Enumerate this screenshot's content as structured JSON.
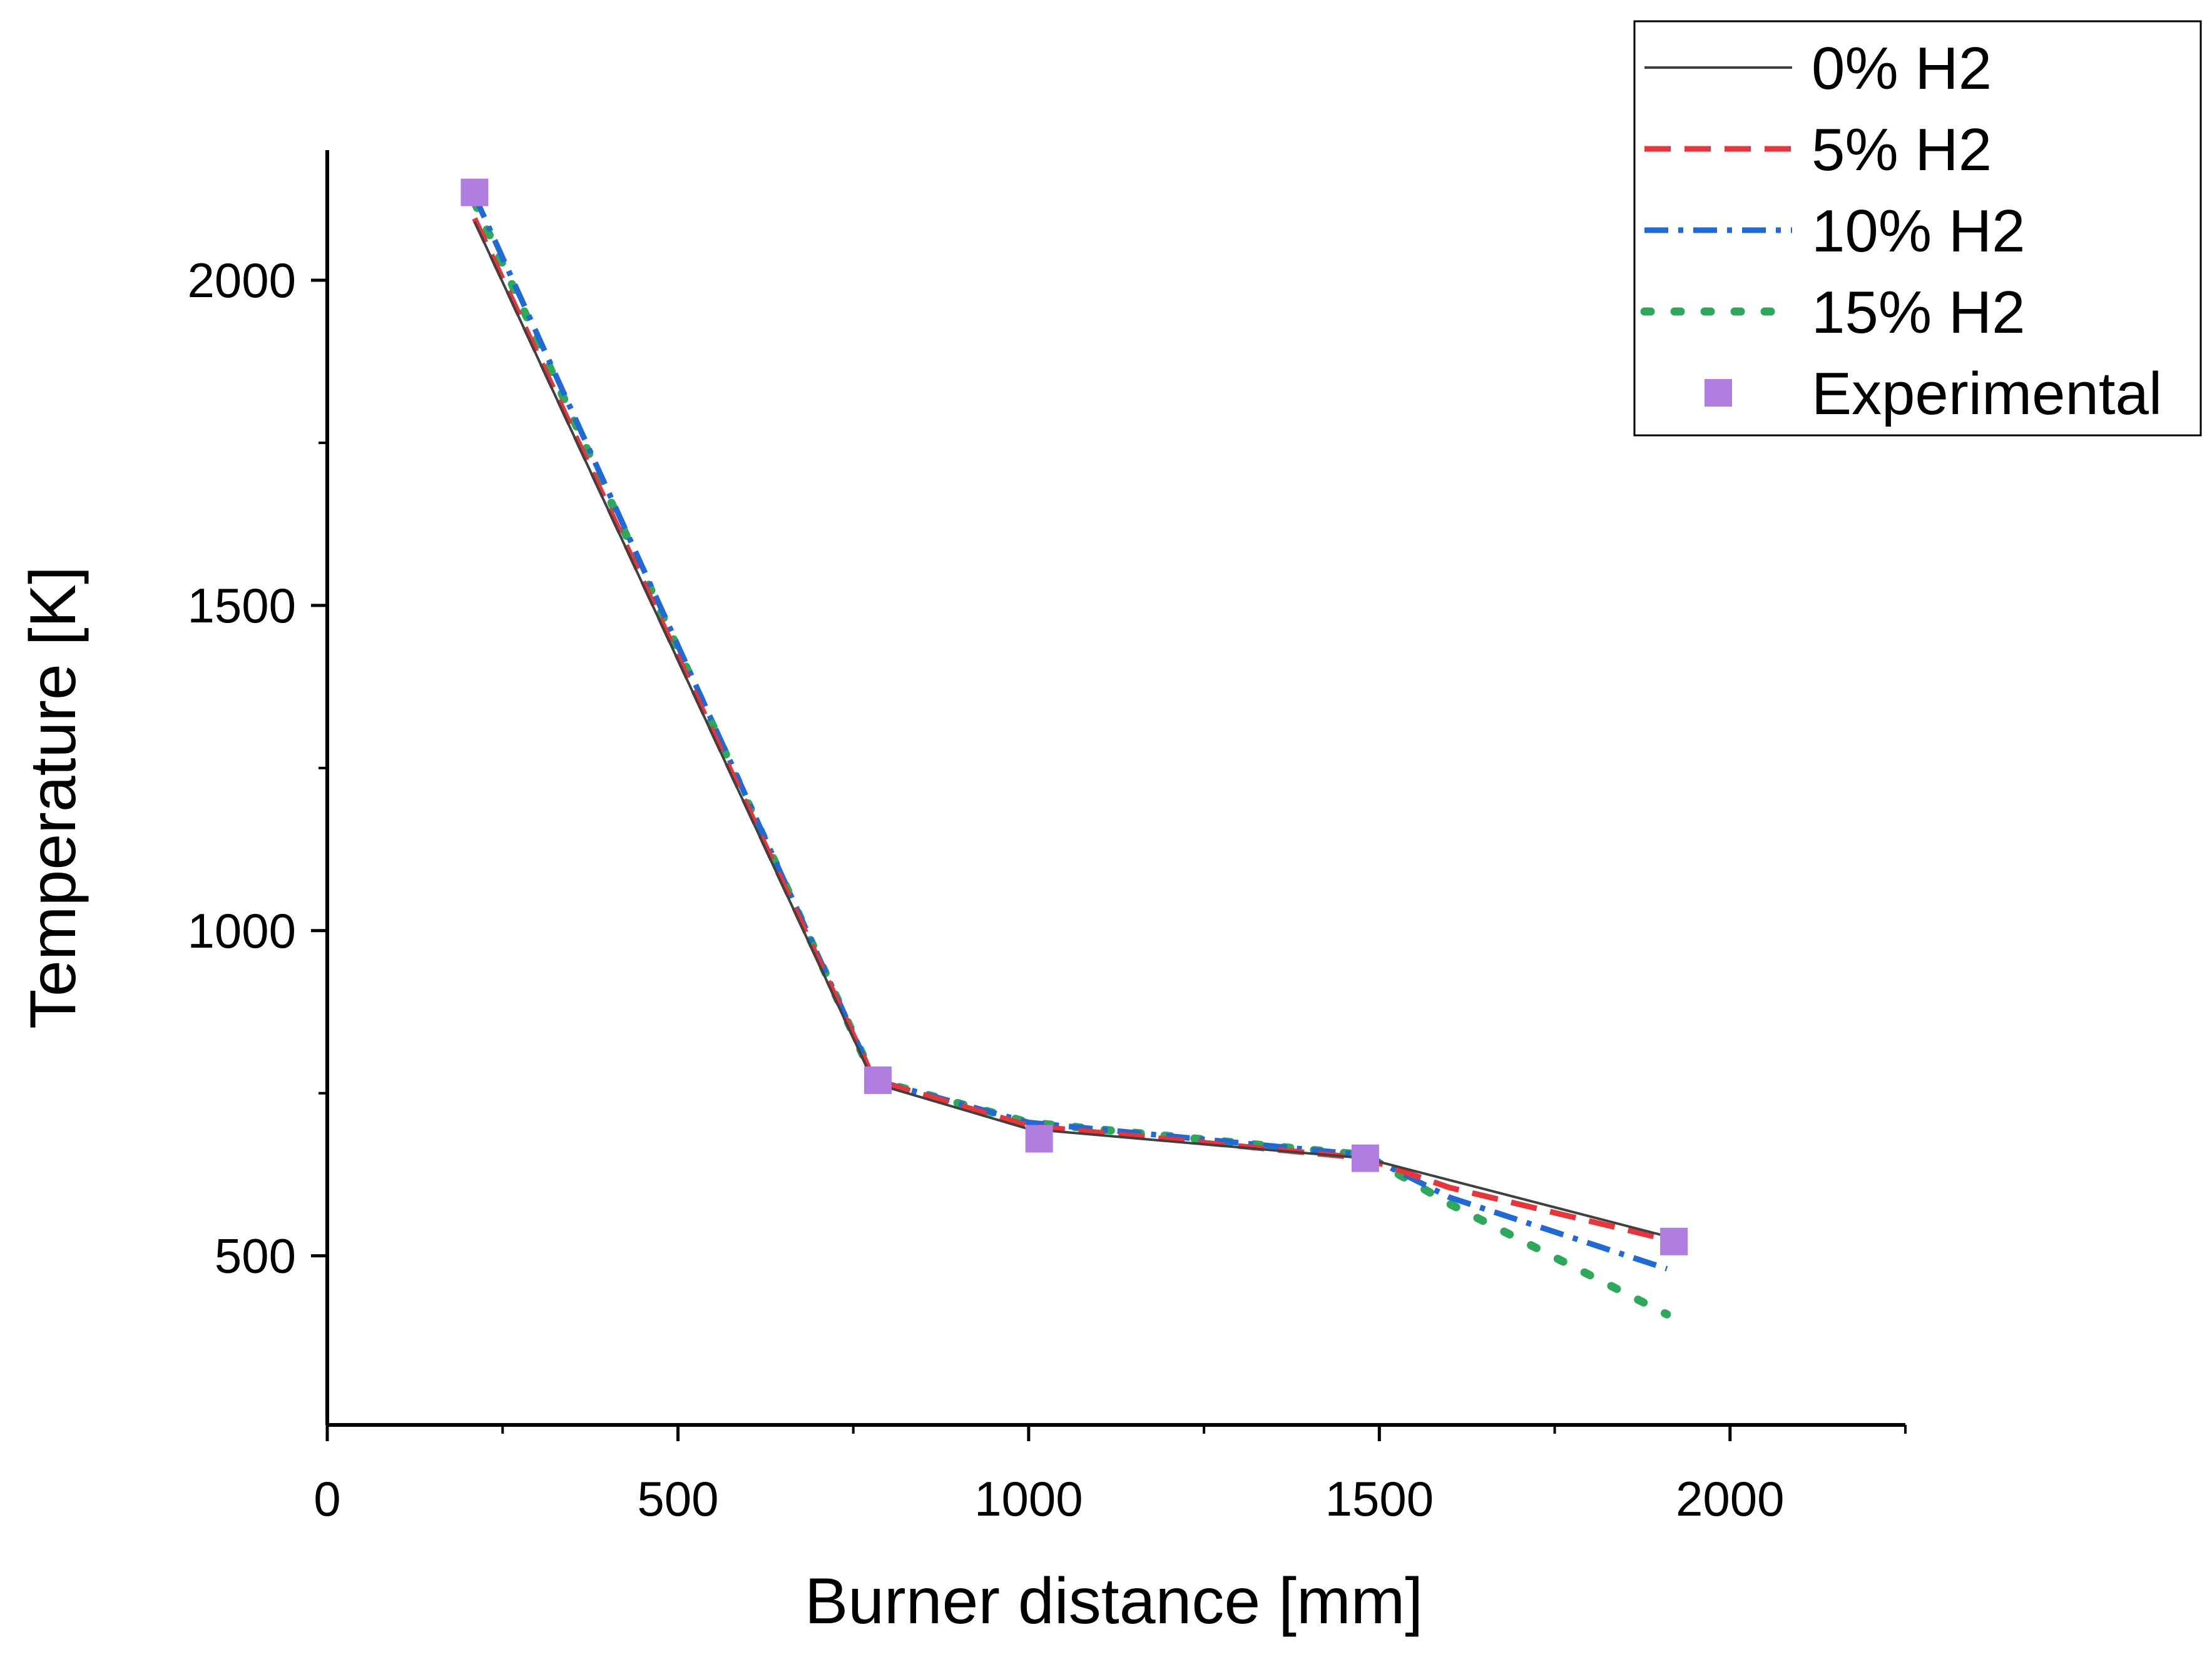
{
  "chart_data": {
    "type": "line",
    "title": "",
    "xlabel": "Burner distance [mm]",
    "ylabel": "Temperature [K]",
    "xlim": [
      0,
      2250
    ],
    "ylim": [
      240,
      2200
    ],
    "xticks": [
      0,
      500,
      1000,
      1500,
      2000
    ],
    "yticks": [
      500,
      1000,
      1500,
      2000
    ],
    "grid": false,
    "legend_position": "top-right",
    "series": [
      {
        "name": "0% H2",
        "style": "solid",
        "color": "#404040",
        "x": [
          210,
          780,
          1000,
          1480,
          1910
        ],
        "y": [
          2090,
          765,
          695,
          650,
          530
        ]
      },
      {
        "name": "5% H2",
        "style": "dashed",
        "color": "#e8343a",
        "x": [
          210,
          780,
          1000,
          1480,
          1600,
          1910
        ],
        "y": [
          2095,
          770,
          700,
          650,
          605,
          525
        ]
      },
      {
        "name": "10% H2",
        "style": "dashdot",
        "color": "#1f6ad6",
        "x": [
          210,
          780,
          1000,
          1480,
          1600,
          1910
        ],
        "y": [
          2130,
          770,
          705,
          655,
          590,
          480
        ]
      },
      {
        "name": "15% H2",
        "style": "dotted",
        "color": "#2ea85a",
        "x": [
          210,
          780,
          1000,
          1480,
          1600,
          1910
        ],
        "y": [
          2120,
          770,
          705,
          655,
          580,
          410
        ]
      },
      {
        "name": "Experimental",
        "style": "marker",
        "color": "#b07ee0",
        "x": [
          210,
          785,
          1015,
          1480,
          1920
        ],
        "y": [
          2135,
          770,
          680,
          650,
          522
        ]
      }
    ]
  }
}
